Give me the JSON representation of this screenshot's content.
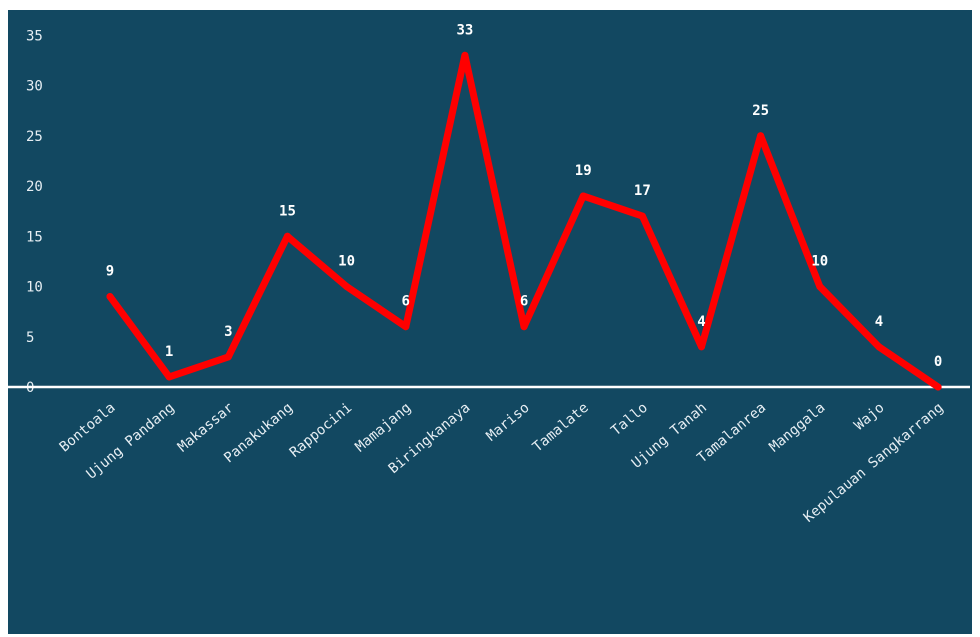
{
  "chart_data": {
    "type": "line",
    "title": "",
    "xlabel": "",
    "ylabel": "",
    "categories": [
      "Bontoala",
      "Ujung Pandang",
      "Makassar",
      "Panakukang",
      "Rappocini",
      "Mamajang",
      "Biringkanaya",
      "Mariso",
      "Tamalate",
      "Tallo",
      "Ujung Tanah",
      "Tamalanrea",
      "Manggala",
      "Wajo",
      "Kepulauan Sangkarrang"
    ],
    "series": [
      {
        "values": [
          9,
          1,
          3,
          15,
          10,
          6,
          33,
          6,
          19,
          17,
          4,
          25,
          10,
          4,
          0
        ]
      }
    ],
    "ylim": [
      0,
      35
    ],
    "yticks": [
      0,
      5,
      10,
      15,
      20,
      25,
      30,
      35
    ],
    "grid": false,
    "data_labels": true,
    "colors": {
      "background": "#124861",
      "line": "#ff0000",
      "text": "#e6eef3",
      "drop_line": "#ffffff"
    }
  }
}
